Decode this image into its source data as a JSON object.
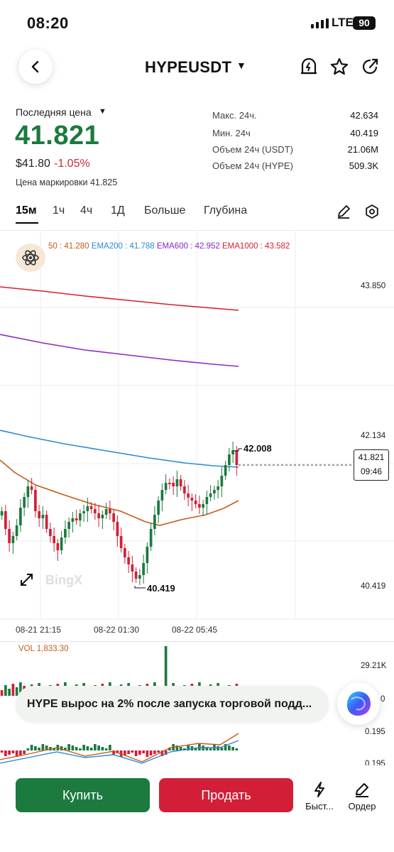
{
  "status_bar": {
    "time": "08:20",
    "network": "LTE",
    "battery": "90"
  },
  "header": {
    "pair": "HYPEUSDT"
  },
  "ticker": {
    "last_price_label": "Последняя цена",
    "last_price": "41.821",
    "usd_price": "$41.80",
    "change_pct": "-1.05%",
    "mark_price": "Цена маркировки 41.825",
    "stats": [
      {
        "label": "Макс. 24ч.",
        "value": "42.634"
      },
      {
        "label": "Мин. 24ч",
        "value": "40.419"
      },
      {
        "label": "Объем 24ч (USDT)",
        "value": "21.06M"
      },
      {
        "label": "Объем 24ч (HYPE)",
        "value": "509.3K"
      }
    ]
  },
  "tabs": [
    "15м",
    "1ч",
    "4ч",
    "1Д",
    "Больше",
    "Глубина"
  ],
  "chart": {
    "legend": {
      "ema_a": "41.280",
      "ema200_label": "EMA200",
      "ema200": "41.788",
      "ema600_label": "EMA600",
      "ema600": "42.952",
      "ema1000_label": "EMA1000",
      "ema1000": "43.582"
    },
    "y_labels": [
      "43.850",
      "42.134",
      "40.419"
    ],
    "current_price": "41.821",
    "countdown": "09:46",
    "high_marker": "42.008",
    "low_marker": "40.419",
    "watermark": "BingX",
    "x_labels": [
      "08-21 21:15",
      "08-22 01:30",
      "08-22 05:45"
    ],
    "volume_label": "VOL 1,833.30",
    "volume_axis": [
      "29.21K",
      "0"
    ],
    "macd_axis": [
      "0.195",
      "0.195"
    ],
    "colors": {
      "up": "#1c7a3f",
      "down": "#d21f37",
      "ema1000": "#d71f2e",
      "ema600": "#8a2bbf",
      "ema200": "#2a8ad6",
      "ema_a": "#c75b1a"
    }
  },
  "news_toast": "HYPE вырос на 2% после запуска торговой подд...",
  "actions": {
    "buy": "Купить",
    "sell": "Продать",
    "quick": "Быст...",
    "order": "Ордер"
  }
}
